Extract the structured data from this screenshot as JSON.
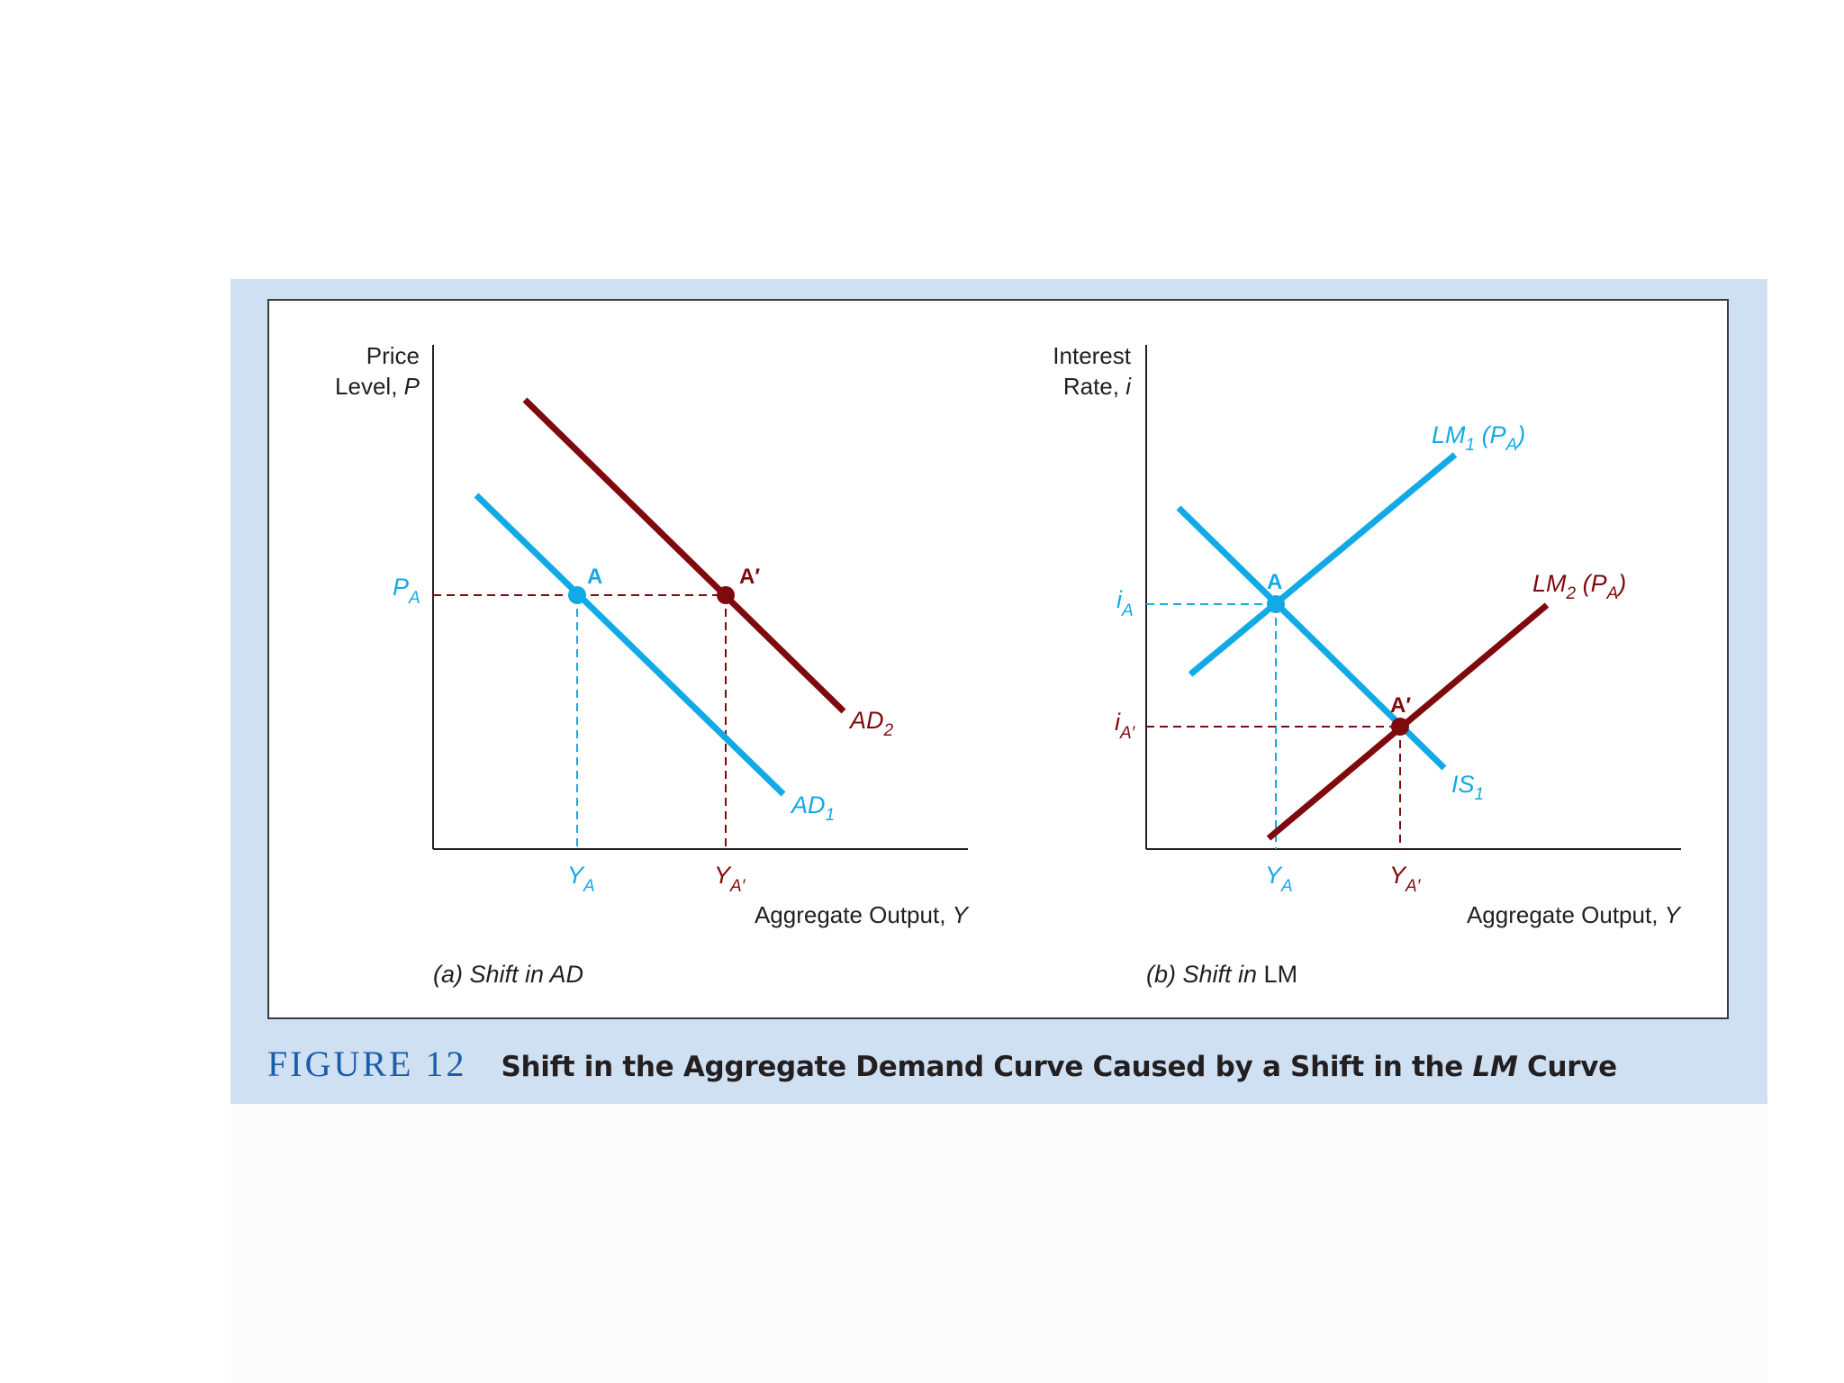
{
  "colors": {
    "blue": "#12aae6",
    "red": "#7f0a0d",
    "axis": "#231f20",
    "band": "#cfe0f3",
    "figure_label": "#1a5da8"
  },
  "figure": {
    "number": "FIGURE 12",
    "title_before": "Shift in the Aggregate Demand Curve Caused by a Shift in the ",
    "title_italic": "LM",
    "title_after": " Curve"
  },
  "panel_a": {
    "caption": "(a) Shift in AD",
    "y_axis_line1": "Price",
    "y_axis_line2_text": "Level, ",
    "y_axis_line2_var": "P",
    "x_axis_text": "Aggregate Output, ",
    "x_axis_var": "Y",
    "price_label": "P",
    "price_sub": "A",
    "point_a": "A",
    "point_a_prime": "A′",
    "ya_label": "Y",
    "ya_sub": "A",
    "ya_prime_label": "Y",
    "ya_prime_sub": "A′",
    "ad1_label": "AD",
    "ad1_sub": "1",
    "ad2_label": "AD",
    "ad2_sub": "2"
  },
  "panel_b": {
    "caption_italic": "(b) Shift in ",
    "caption_normal": "LM",
    "y_axis_line1": "Interest",
    "y_axis_line2_text": "Rate, ",
    "y_axis_line2_var": "i",
    "x_axis_text": "Aggregate Output, ",
    "x_axis_var": "Y",
    "ia_label": "i",
    "ia_sub": "A",
    "ia_prime_label": "i",
    "ia_prime_sub": "A′",
    "point_a": "A",
    "point_a_prime": "A′",
    "ya_label": "Y",
    "ya_sub": "A",
    "ya_prime_label": "Y",
    "ya_prime_sub": "A′",
    "lm1_label": "LM",
    "lm1_sub": "1",
    "lm1_paren_open": " (",
    "lm1_p": "P",
    "lm1_p_sub": "A",
    "lm1_paren_close": ")",
    "lm2_label": "LM",
    "lm2_sub": "2",
    "lm2_paren_open": " (",
    "lm2_p": "P",
    "lm2_p_sub": "A",
    "lm2_paren_close": ")",
    "is1_label": "IS",
    "is1_sub": "1"
  }
}
